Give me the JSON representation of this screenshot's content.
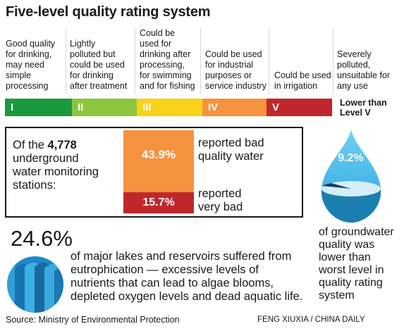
{
  "title": "Five-level quality rating system",
  "levels": [
    {
      "label": "I",
      "color": "#1a9a3d",
      "desc": [
        "Good quality",
        "for drinking,",
        "may need",
        "simple",
        "processing"
      ]
    },
    {
      "label": "II",
      "color": "#8cc63f",
      "desc": [
        "Lightly",
        "polluted but",
        "could  be used",
        "for drinking",
        "after treatment"
      ]
    },
    {
      "label": "III",
      "color": "#f9d21a",
      "desc": [
        "Could be",
        "used for",
        "drinking after",
        "processing,",
        "for swimming",
        "and for fishing"
      ]
    },
    {
      "label": "IV",
      "color": "#f5923e",
      "desc": [
        "Could be used",
        "for industrial",
        "purposes or",
        "service industry"
      ]
    },
    {
      "label": "V",
      "color": "#c0272d",
      "desc": [
        "Could be used",
        "in irrigation"
      ]
    }
  ],
  "below_v": {
    "desc": [
      "Severely",
      "polluted,",
      "unsuitable for",
      "any use"
    ],
    "label_line1": "Lower than",
    "label_line2": "Level V"
  },
  "stations": {
    "prefix": "Of the",
    "count": "4,778",
    "line2": "underground",
    "line3": "water monitoring",
    "line4": "stations:"
  },
  "chart_data": [
    {
      "type": "bar",
      "title": "",
      "categories": [
        "reported bad quality water",
        "reported very bad"
      ],
      "values": [
        43.9,
        15.7
      ],
      "labels": [
        "43.9%",
        "15.7%"
      ],
      "colors": [
        "#f5923e",
        "#c0272d"
      ],
      "stacked": true
    },
    {
      "type": "pie",
      "title": "",
      "categories": [
        "of groundwater quality was lower than worst level in quality rating system"
      ],
      "values": [
        9.2
      ],
      "labels": [
        "9.2%"
      ]
    }
  ],
  "bad_label": [
    "reported bad",
    "quality water"
  ],
  "verybad_label": [
    "reported",
    "very bad"
  ],
  "groundwater_text": [
    "of groundwater",
    "quality was",
    "lower than",
    "worst level in",
    "quality rating",
    "system"
  ],
  "lakes": {
    "pct": "24.6%",
    "text": [
      "of major lakes and reservoirs suffered from",
      "eutrophication — excessive levels of",
      "nutrients that can lead to algae blooms,",
      "depleted oxygen levels and dead aquatic life."
    ]
  },
  "source": "Source: Ministry of Environmental Protection",
  "credit": "FENG XIUXIA / CHINA DAILY"
}
